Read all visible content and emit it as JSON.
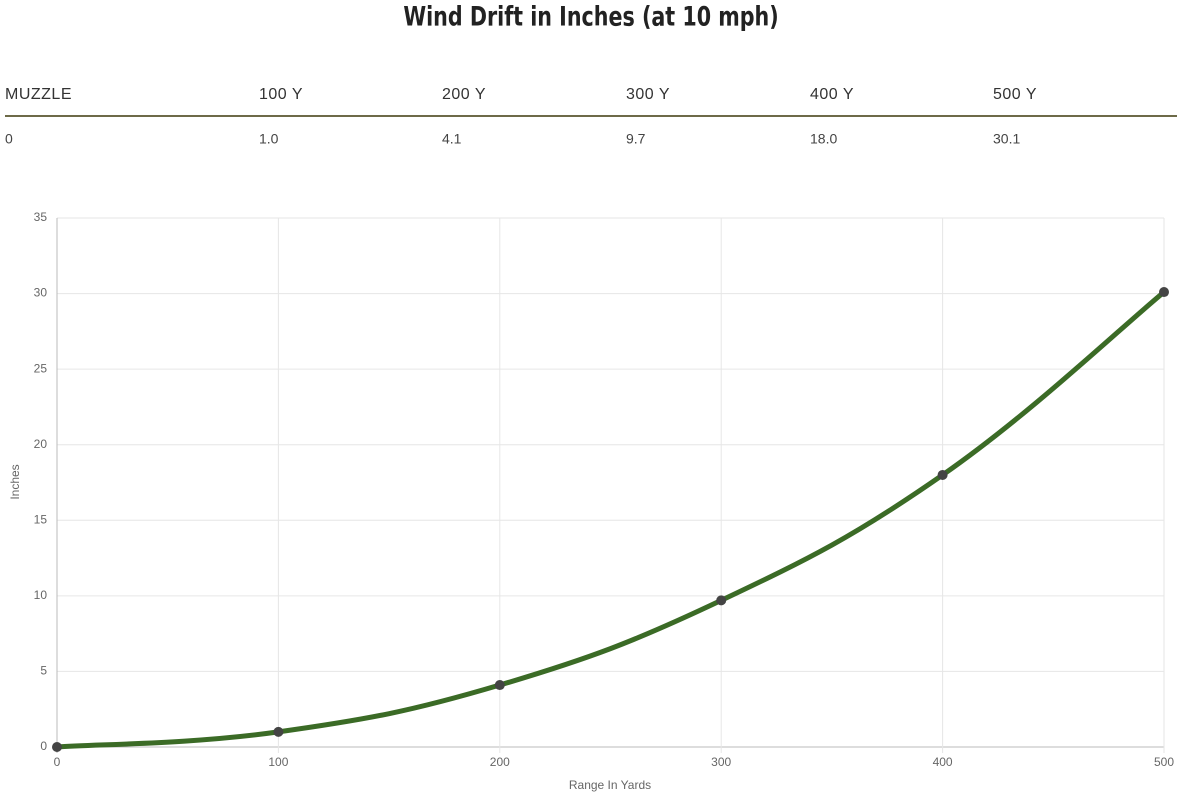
{
  "title": "Wind Drift in Inches (at 10 mph)",
  "table": {
    "header": [
      "MUZZLE",
      "100 Y",
      "200 Y",
      "300 Y",
      "400 Y",
      "500 Y"
    ],
    "rows": [
      [
        "0",
        "1.0",
        "4.1",
        "9.7",
        "18.0",
        "30.1"
      ]
    ]
  },
  "chart_data": {
    "type": "line",
    "x": [
      0,
      100,
      200,
      300,
      400,
      500
    ],
    "series": [
      {
        "color": "#3b6b26",
        "values": [
          0,
          1.0,
          4.1,
          9.7,
          18.0,
          30.1
        ]
      }
    ],
    "xlim": [
      0,
      500
    ],
    "xticks": [
      0,
      100,
      200,
      300,
      400,
      500
    ],
    "ylim": [
      0,
      35
    ],
    "yticks": [
      0,
      5,
      10,
      15,
      20,
      25,
      30,
      35
    ],
    "x_label": "Range In Yards",
    "y_label": "Inches",
    "grid": true
  }
}
